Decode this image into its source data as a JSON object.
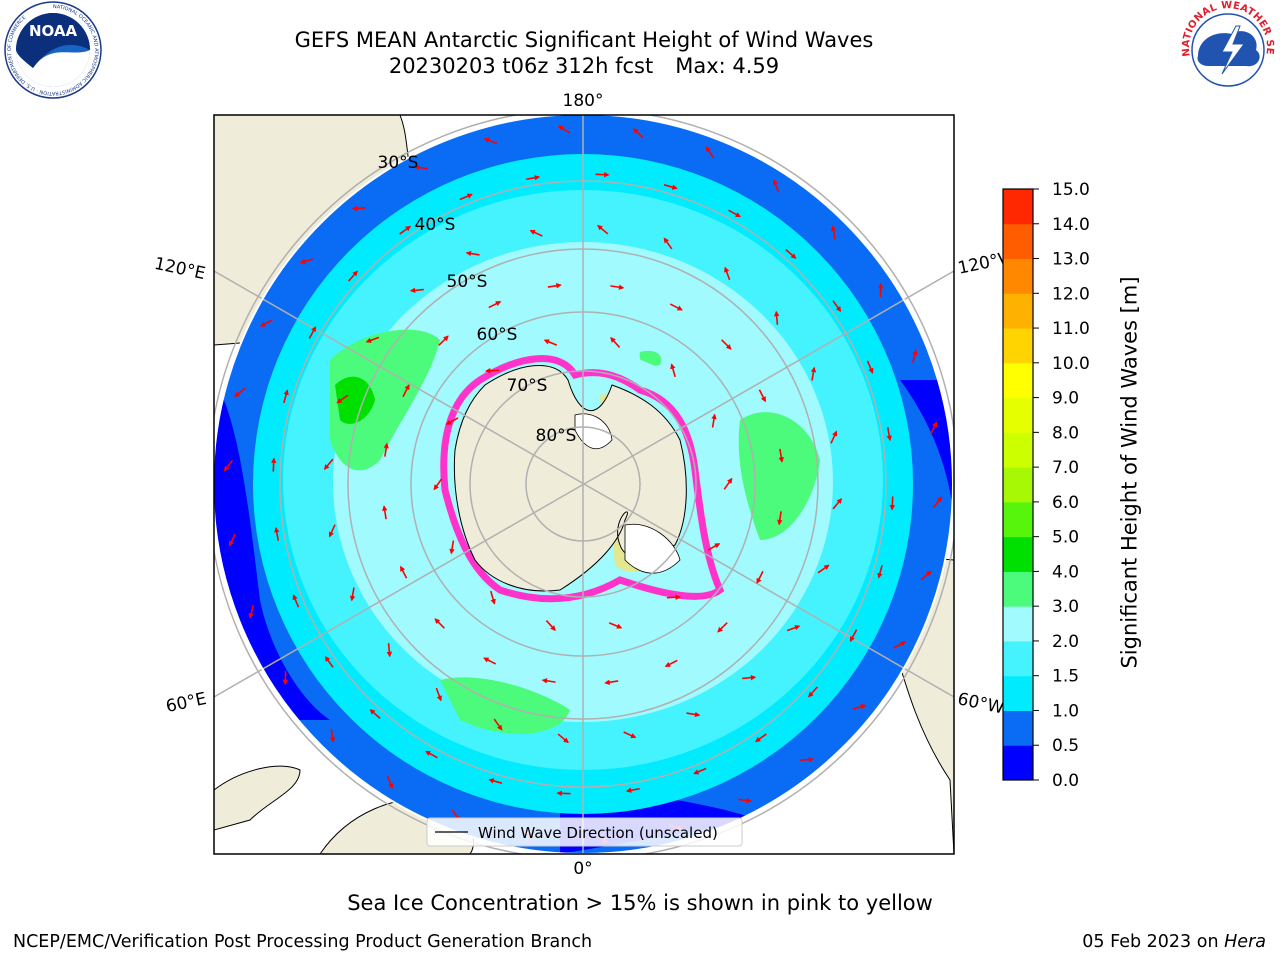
{
  "header": {
    "title_line1": "GEFS MEAN Antarctic Significant Height of Wind Waves",
    "title_line2_date": "20230203 t06z 312h fcst",
    "title_line2_max": "Max: 4.59"
  },
  "logos": {
    "left": "noaa-logo",
    "right": "nws-logo",
    "left_text": "NOAA",
    "left_ring_text": "NATIONAL OCEANIC AND ATMOSPHERIC ADMINISTRATION · U.S. DEPARTMENT OF COMMERCE",
    "right_ring_text": "NATIONAL WEATHER SERVICE"
  },
  "map": {
    "projection": "south-polar-stereographic",
    "longitude_labels": {
      "top": "180°",
      "bottom": "0°",
      "upper_left": "120°E",
      "upper_right": "120°W",
      "lower_left": "60°E",
      "lower_right": "60°W"
    },
    "latitude_labels": [
      "30°S",
      "40°S",
      "50°S",
      "60°S",
      "70°S",
      "80°S"
    ],
    "legend_label": "Wind Wave Direction (unscaled)"
  },
  "colorbar": {
    "label": "Significant Height of Wind Waves [m]",
    "ticks": [
      "0.0",
      "0.5",
      "1.0",
      "1.5",
      "2.0",
      "3.0",
      "4.0",
      "5.0",
      "6.0",
      "7.0",
      "8.0",
      "9.0",
      "10.0",
      "11.0",
      "12.0",
      "13.0",
      "14.0",
      "15.0"
    ],
    "colors": [
      "#0000ff",
      "#0a6cf5",
      "#00ecfe",
      "#45f3fe",
      "#a0fafe",
      "#4dfb7c",
      "#00e000",
      "#57f50b",
      "#a6f805",
      "#ccff00",
      "#e6ff00",
      "#ffff00",
      "#ffd400",
      "#ffb100",
      "#ff8800",
      "#ff5d00",
      "#ff2800"
    ]
  },
  "footer": {
    "ice_note": "Sea Ice Concentration > 15% is shown in pink to yellow",
    "left": "NCEP/EMC/Verification Post Processing Product Generation Branch",
    "right_date": "05 Feb 2023 on",
    "right_machine": "Hera"
  }
}
